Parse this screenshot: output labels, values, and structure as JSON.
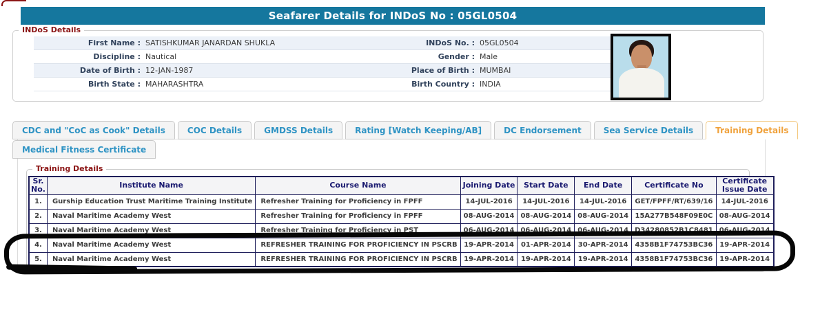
{
  "header": {
    "title": "Seafarer Details for INDoS No : 05GL0504"
  },
  "indos_details": {
    "legend": "INDoS Details",
    "rows": [
      {
        "label1": "First Name :",
        "value1": "SATISHKUMAR JANARDAN SHUKLA",
        "label2": "INDoS No. :",
        "value2": "05GL0504"
      },
      {
        "label1": "Discipline :",
        "value1": "Nautical",
        "label2": "Gender :",
        "value2": "Male"
      },
      {
        "label1": "Date of Birth :",
        "value1": "12-JAN-1987",
        "label2": "Place of Birth :",
        "value2": "MUMBAI"
      },
      {
        "label1": "Birth State :",
        "value1": "MAHARASHTRA",
        "label2": "Birth Country :",
        "value2": "INDIA"
      }
    ],
    "photo": "seafarer-photo"
  },
  "tabs": {
    "row1": [
      {
        "label": "CDC and \"CoC as Cook\" Details",
        "active": false
      },
      {
        "label": "COC Details",
        "active": false
      },
      {
        "label": "GMDSS Details",
        "active": false
      },
      {
        "label": "Rating [Watch Keeping/AB]",
        "active": false
      },
      {
        "label": "DC Endorsement",
        "active": false
      },
      {
        "label": "Sea Service Details",
        "active": false
      },
      {
        "label": "Training Details",
        "active": true
      }
    ],
    "row2": [
      {
        "label": "Medical Fitness Certificate",
        "active": false
      }
    ]
  },
  "training": {
    "legend": "Training Details",
    "table": {
      "columns": [
        "Sr. No.",
        "Institute Name",
        "Course Name",
        "Joining Date",
        "Start Date",
        "End Date",
        "Certificate No",
        "Certificate Issue Date"
      ],
      "rows": [
        [
          "1.",
          "Gurship Education Trust Maritime Training Institute",
          "Refresher Training for Proficiency in FPFF",
          "14-JUL-2016",
          "14-JUL-2016",
          "14-JUL-2016",
          "GET/FPFF/RT/639/16",
          "14-JUL-2016"
        ],
        [
          "2.",
          "Naval Maritime Academy West",
          "Refresher Training for Proficiency in FPFF",
          "08-AUG-2014",
          "08-AUG-2014",
          "08-AUG-2014",
          "15A277B548F09E0C",
          "08-AUG-2014"
        ],
        [
          "3.",
          "Naval Maritime Academy West",
          "Refresher Training for Proficiency in PST",
          "06-AUG-2014",
          "06-AUG-2014",
          "06-AUG-2014",
          "D34280852B1C8481",
          "06-AUG-2014"
        ],
        [
          "4.",
          "Naval Maritime Academy West",
          "REFRESHER TRAINING FOR PROFICIENCY IN PSCRB",
          "19-APR-2014",
          "01-APR-2014",
          "30-APR-2014",
          "4358B1F74753BC36",
          "19-APR-2014"
        ],
        [
          "5.",
          "Naval Maritime Academy West",
          "REFRESHER TRAINING FOR PROFICIENCY IN PSCRB",
          "19-APR-2014",
          "19-APR-2014",
          "19-APR-2014",
          "4358B1F74753BC36",
          "19-APR-2014"
        ]
      ],
      "highlighted_rows": [
        4,
        5
      ]
    }
  },
  "colors": {
    "title_bar": "#15779e",
    "legend_maroon": "#8b1414",
    "tab_blue": "#2e93c4",
    "tab_active_orange": "#f0a23c",
    "table_border_navy": "#1e1e5a",
    "stripe_blue": "#ecf1f8",
    "annotation_black": "#070707"
  }
}
